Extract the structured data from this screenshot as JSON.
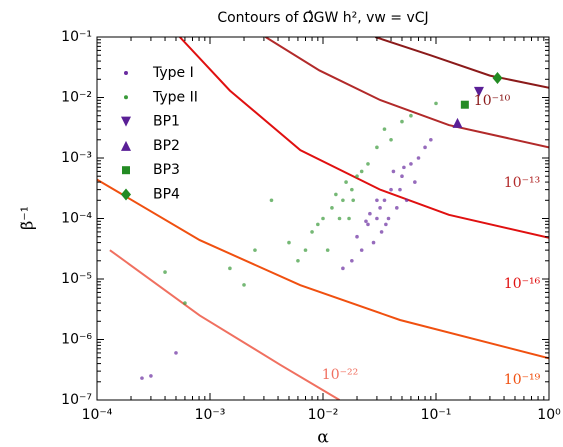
{
  "chart_data": {
    "type": "scatter",
    "title": "Contours of Ω̂GW h², vw = vCJ",
    "x_label": "α",
    "y_label": "β̃⁻¹",
    "xscale": "log",
    "yscale": "log",
    "xlim": [
      0.0001,
      1
    ],
    "ylim": [
      1e-07,
      0.1
    ],
    "xticks": [
      {
        "value": 0.0001,
        "label": "10⁻⁴"
      },
      {
        "value": 0.001,
        "label": "10⁻³"
      },
      {
        "value": 0.01,
        "label": "10⁻²"
      },
      {
        "value": 0.1,
        "label": "10⁻¹"
      },
      {
        "value": 1,
        "label": "10⁰"
      }
    ],
    "yticks": [
      {
        "value": 1e-07,
        "label": "10⁻⁷"
      },
      {
        "value": 1e-06,
        "label": "10⁻⁶"
      },
      {
        "value": 1e-05,
        "label": "10⁻⁵"
      },
      {
        "value": 0.0001,
        "label": "10⁻⁴"
      },
      {
        "value": 0.001,
        "label": "10⁻³"
      },
      {
        "value": 0.01,
        "label": "10⁻²"
      },
      {
        "value": 0.1,
        "label": "10⁻¹"
      }
    ],
    "legend": "upper left",
    "series": [
      {
        "name": "Type I",
        "color": "#6a2ca0",
        "marker": "dot",
        "x": [
          0.02,
          0.025,
          0.03,
          0.035,
          0.04,
          0.045,
          0.05,
          0.028,
          0.033,
          0.038,
          0.06,
          0.07,
          0.022,
          0.018,
          0.042,
          0.055,
          0.065,
          0.08,
          0.03,
          0.026,
          0.048,
          0.036,
          0.024,
          0.052,
          0.0005,
          0.0003,
          0.00025,
          0.09,
          0.015,
          0.032
        ],
        "y": [
          5e-05,
          8e-05,
          0.0001,
          0.0002,
          0.0003,
          0.00015,
          0.0005,
          4e-05,
          6e-05,
          0.0001,
          0.0008,
          0.001,
          3e-05,
          2e-05,
          0.0006,
          0.0002,
          0.0004,
          0.0015,
          0.0002,
          0.00012,
          0.0003,
          8e-05,
          9e-05,
          0.0007,
          6e-07,
          2.5e-07,
          2.3e-07,
          0.002,
          1.5e-05,
          0.00015
        ]
      },
      {
        "name": "Type II",
        "color": "#3a9a3a",
        "marker": "dot",
        "x": [
          0.005,
          0.008,
          0.01,
          0.012,
          0.015,
          0.018,
          0.02,
          0.025,
          0.03,
          0.009,
          0.011,
          0.014,
          0.007,
          0.006,
          0.016,
          0.022,
          0.013,
          0.017,
          0.04,
          0.05,
          0.035,
          0.0035,
          0.0025,
          0.0004,
          0.0006,
          0.0015,
          0.002,
          0.1,
          0.06,
          0.0185
        ],
        "y": [
          4e-05,
          6e-05,
          0.0001,
          0.00015,
          0.0002,
          0.0003,
          0.0005,
          0.0008,
          0.0015,
          8e-05,
          3e-05,
          0.0001,
          3e-05,
          2e-05,
          0.0004,
          0.0006,
          0.00025,
          0.0001,
          0.002,
          0.004,
          0.003,
          0.0002,
          3e-05,
          1.3e-05,
          4e-06,
          1.5e-05,
          8e-06,
          0.008,
          0.005,
          0.0002
        ]
      },
      {
        "name": "BP1",
        "color": "#5a1f96",
        "marker": "triangle-down",
        "x": [
          0.24
        ],
        "y": [
          0.0124
        ]
      },
      {
        "name": "BP2",
        "color": "#5a1f96",
        "marker": "triangle-up",
        "x": [
          0.155
        ],
        "y": [
          0.0038
        ]
      },
      {
        "name": "BP3",
        "color": "#238b23",
        "marker": "square",
        "x": [
          0.18
        ],
        "y": [
          0.0076
        ]
      },
      {
        "name": "BP4",
        "color": "#238b23",
        "marker": "diamond",
        "x": [
          0.35
        ],
        "y": [
          0.021
        ]
      }
    ],
    "contours": [
      {
        "label": "10⁻¹⁰",
        "color": "#8b1a1a",
        "x": [
          0.029,
          0.089,
          0.3,
          1
        ],
        "y": [
          0.1,
          0.05,
          0.023,
          0.0145
        ]
      },
      {
        "label": "10⁻¹³",
        "color": "#b22a2a",
        "x": [
          0.0031,
          0.0093,
          0.032,
          0.13,
          1
        ],
        "y": [
          0.1,
          0.028,
          0.0091,
          0.0035,
          0.0015
        ]
      },
      {
        "label": "10⁻¹⁶",
        "color": "#e01010",
        "x": [
          0.00054,
          0.0015,
          0.0063,
          0.032,
          0.13,
          1
        ],
        "y": [
          0.1,
          0.013,
          0.00135,
          0.0003,
          0.000115,
          4.8e-05
        ]
      },
      {
        "label": "10⁻¹⁹",
        "color": "#f05010",
        "x": [
          0.0001,
          0.00081,
          0.0063,
          0.048,
          1
        ],
        "y": [
          0.00044,
          4.4e-05,
          7.9e-06,
          2.1e-06,
          4.9e-07
        ]
      },
      {
        "label": "10⁻²²",
        "color": "#f07060",
        "x": [
          0.00013,
          0.00081,
          0.0042,
          0.014
        ],
        "y": [
          3e-05,
          2.5e-06,
          3.8e-07,
          1e-07
        ]
      }
    ]
  }
}
